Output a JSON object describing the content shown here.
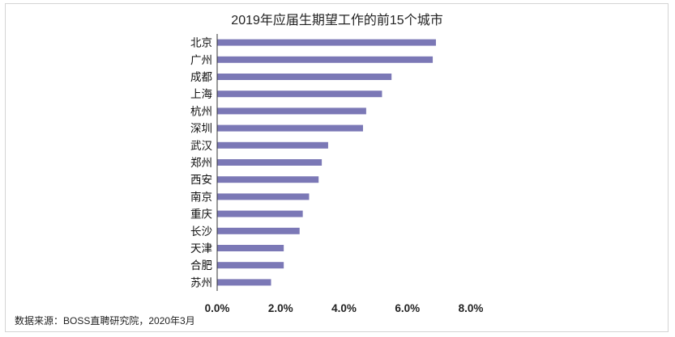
{
  "chart_data": {
    "type": "bar",
    "orientation": "horizontal",
    "title": "2019年应届生期望工作的前15个城市",
    "categories": [
      "北京",
      "广州",
      "成都",
      "上海",
      "杭州",
      "深圳",
      "武汉",
      "郑州",
      "西安",
      "南京",
      "重庆",
      "长沙",
      "天津",
      "合肥",
      "苏州"
    ],
    "values": [
      6.9,
      6.8,
      5.5,
      5.2,
      4.7,
      4.6,
      3.5,
      3.3,
      3.2,
      2.9,
      2.7,
      2.6,
      2.1,
      2.1,
      1.7
    ],
    "xlim": [
      0,
      8
    ],
    "x_ticks": [
      "0.0%",
      "2.0%",
      "4.0%",
      "6.0%",
      "8.0%"
    ],
    "xlabel": "",
    "ylabel": "",
    "grid": false,
    "bar_color": "#7b78b6",
    "source": "数据来源：BOSS直聘研究院，2020年3月"
  }
}
